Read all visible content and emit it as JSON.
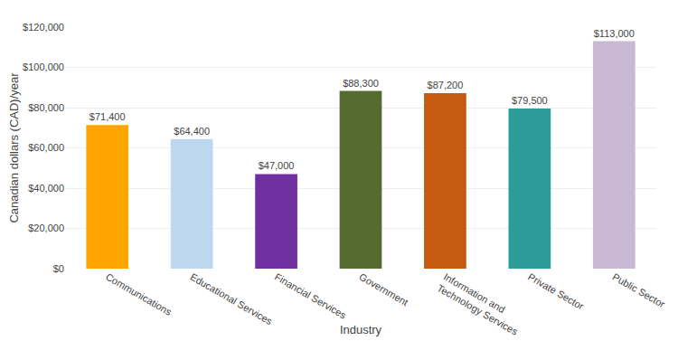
{
  "chart_data": {
    "type": "bar",
    "categories": [
      "Communications",
      "Educational Services",
      "Financial Services",
      "Government",
      "Information and\nTechnology Services",
      "Private Sector",
      "Public Sector"
    ],
    "values": [
      71400,
      64400,
      47000,
      88300,
      87200,
      79500,
      113000
    ],
    "value_labels": [
      "$71,400",
      "$64,400",
      "$47,000",
      "$88,300",
      "$87,200",
      "$79,500",
      "$113,000"
    ],
    "colors": [
      "#FFA500",
      "#BDD7EE",
      "#7030A0",
      "#556B2F",
      "#C55A11",
      "#2E9B9B",
      "#C9B8D4"
    ],
    "xlabel": "Industry",
    "ylabel": "Canadian dollars (CAD)/year",
    "ylim": [
      0,
      120000
    ],
    "yticks": [
      {
        "value": 0,
        "label": "$0"
      },
      {
        "value": 20000,
        "label": "$20,000"
      },
      {
        "value": 40000,
        "label": "$40,000"
      },
      {
        "value": 60000,
        "label": "$60,000"
      },
      {
        "value": 80000,
        "label": "$80,000"
      },
      {
        "value": 100000,
        "label": "$100,000"
      },
      {
        "value": 120000,
        "label": "$120,000"
      }
    ],
    "grid": true,
    "data_labels": true
  }
}
